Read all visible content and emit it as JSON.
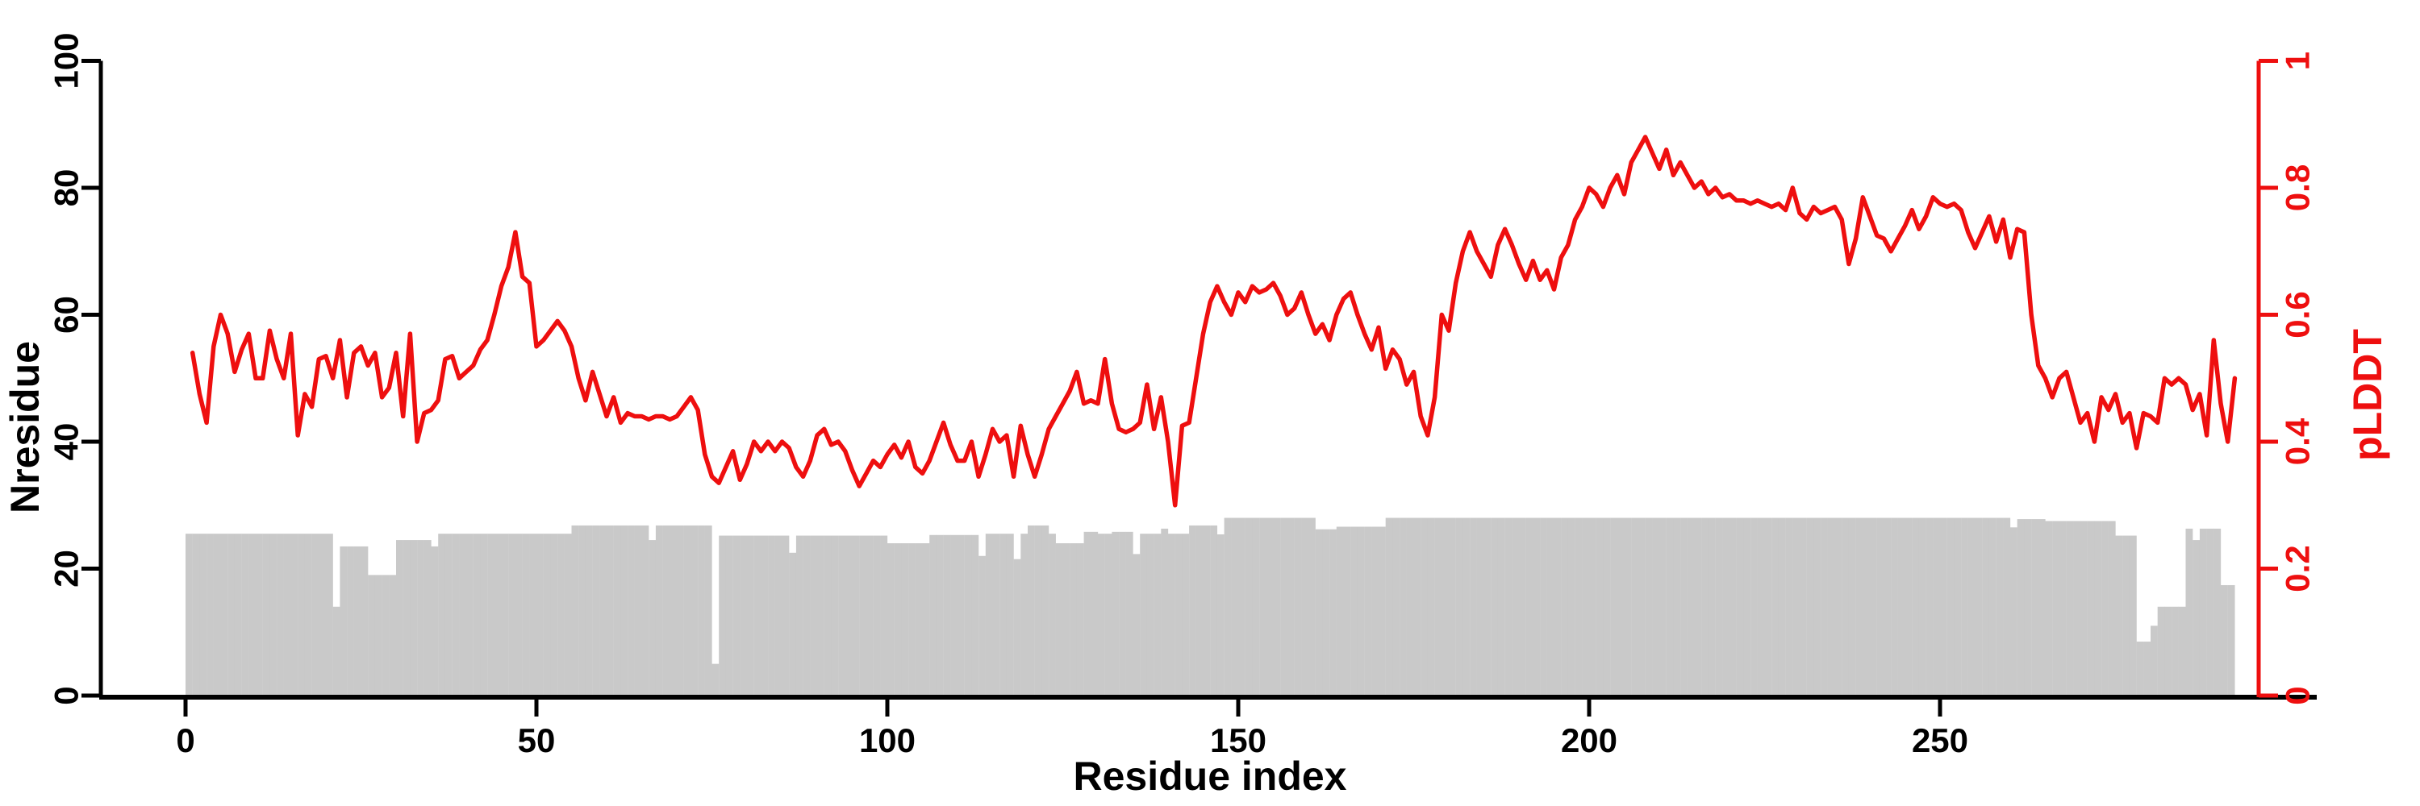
{
  "chart_data": {
    "type": "bar+line",
    "title": "",
    "xlabel": "Residue index",
    "ylabel_left": "Nresidue",
    "ylabel_right": "pLDDT",
    "x_ticks": [
      0,
      50,
      100,
      150,
      200,
      250
    ],
    "y_left_ticks": [
      0,
      20,
      40,
      60,
      80,
      100
    ],
    "y_right_ticks": [
      0,
      0.2,
      0.4,
      0.6,
      0.8,
      1
    ],
    "xlim": [
      0,
      300
    ],
    "ylim_left": [
      0,
      100
    ],
    "ylim_right": [
      0,
      1
    ],
    "grid": false,
    "legend": "none",
    "colors": {
      "bars": "#c9c9c9",
      "line": "#ee0f0f",
      "axis_left": "#000000",
      "axis_right": "#ee0f0f"
    },
    "series": [
      {
        "name": "Nresidue",
        "type": "bar",
        "x_start": 0,
        "values": [
          25.5,
          25.5,
          25.5,
          25.5,
          25.5,
          25.5,
          25.5,
          25.5,
          25.5,
          25.5,
          25.5,
          25.5,
          25.5,
          25.5,
          25.5,
          25.5,
          25.5,
          25.5,
          25.5,
          25.5,
          25.5,
          14,
          23.5,
          23.5,
          23.5,
          23.5,
          19,
          19,
          19,
          19,
          24.5,
          24.5,
          24.5,
          24.5,
          24.5,
          23.5,
          25.5,
          25.5,
          25.5,
          25.5,
          25.5,
          25.5,
          25.5,
          25.5,
          25.5,
          25.5,
          25.5,
          25.5,
          25.5,
          25.5,
          25.5,
          25.5,
          25.5,
          25.5,
          25.5,
          26.8,
          26.8,
          26.8,
          26.8,
          26.8,
          26.8,
          26.8,
          26.8,
          26.8,
          26.8,
          26.8,
          24.5,
          26.8,
          26.8,
          26.8,
          26.8,
          26.8,
          26.8,
          26.8,
          26.8,
          5,
          25.2,
          25.2,
          25.2,
          25.2,
          25.2,
          25.2,
          25.2,
          25.2,
          25.2,
          25.2,
          22.5,
          25.2,
          25.2,
          25.2,
          25.2,
          25.2,
          25.2,
          25.2,
          25.2,
          25.2,
          25.2,
          25.2,
          25.2,
          25.2,
          24,
          24,
          24,
          24,
          24,
          24,
          25.3,
          25.3,
          25.3,
          25.3,
          25.3,
          25.3,
          25.3,
          22,
          25.5,
          25.5,
          25.5,
          25.5,
          21.5,
          25.5,
          26.8,
          26.8,
          26.8,
          25.5,
          24,
          24,
          24,
          24,
          25.8,
          25.8,
          25.5,
          25.5,
          25.8,
          25.8,
          25.8,
          22.3,
          25.5,
          25.5,
          25.5,
          26.3,
          25.5,
          25.5,
          25.5,
          26.8,
          26.8,
          26.8,
          26.8,
          25.4,
          28,
          28,
          28,
          28,
          28,
          28,
          28,
          28,
          28,
          28,
          28,
          28,
          28,
          26.2,
          26.2,
          26.2,
          26.6,
          26.6,
          26.6,
          26.6,
          26.6,
          26.6,
          26.6,
          28,
          28,
          28,
          28,
          28,
          28,
          28,
          28,
          28,
          28,
          28,
          28,
          28,
          28,
          28,
          28,
          28,
          28,
          28,
          28,
          28,
          28,
          28,
          28,
          28,
          28,
          28,
          28,
          28,
          28,
          28,
          28,
          28,
          28,
          28,
          28,
          28,
          28,
          28,
          28,
          28,
          28,
          28,
          28,
          28,
          28,
          28,
          28,
          28,
          28,
          28,
          28,
          28,
          28,
          28,
          28,
          28,
          28,
          28,
          28,
          28,
          28,
          28,
          28,
          28,
          28,
          28,
          28,
          28,
          28,
          28,
          28,
          28,
          28,
          28,
          28,
          28,
          28,
          28,
          28,
          28,
          28,
          28,
          28,
          28,
          28,
          28,
          28,
          28,
          26.5,
          27.8,
          27.8,
          27.8,
          27.8,
          27.5,
          27.5,
          27.5,
          27.5,
          27.5,
          27.5,
          27.5,
          27.5,
          27.5,
          27.5,
          25.2,
          25.2,
          25.2,
          8.5,
          8.5,
          11,
          14,
          14,
          14,
          14,
          26.3,
          24.5,
          26.3,
          26.3,
          26.3,
          17.4,
          17.4
        ]
      },
      {
        "name": "pLDDT",
        "type": "line",
        "x_start": 1,
        "values": [
          0.54,
          0.475,
          0.43,
          0.55,
          0.6,
          0.57,
          0.51,
          0.545,
          0.57,
          0.5,
          0.5,
          0.575,
          0.53,
          0.5,
          0.57,
          0.41,
          0.475,
          0.455,
          0.53,
          0.535,
          0.5,
          0.56,
          0.47,
          0.54,
          0.55,
          0.52,
          0.54,
          0.47,
          0.485,
          0.54,
          0.44,
          0.57,
          0.4,
          0.445,
          0.45,
          0.465,
          0.53,
          0.535,
          0.5,
          0.51,
          0.52,
          0.545,
          0.56,
          0.6,
          0.645,
          0.675,
          0.73,
          0.66,
          0.65,
          0.55,
          0.56,
          0.575,
          0.59,
          0.575,
          0.55,
          0.5,
          0.465,
          0.51,
          0.475,
          0.44,
          0.47,
          0.43,
          0.445,
          0.44,
          0.44,
          0.435,
          0.44,
          0.44,
          0.435,
          0.44,
          0.455,
          0.47,
          0.45,
          0.38,
          0.345,
          0.335,
          0.36,
          0.385,
          0.34,
          0.365,
          0.4,
          0.385,
          0.4,
          0.385,
          0.4,
          0.39,
          0.36,
          0.345,
          0.37,
          0.41,
          0.42,
          0.395,
          0.4,
          0.385,
          0.355,
          0.33,
          0.35,
          0.37,
          0.36,
          0.38,
          0.395,
          0.375,
          0.4,
          0.36,
          0.35,
          0.37,
          0.4,
          0.43,
          0.395,
          0.37,
          0.37,
          0.4,
          0.345,
          0.38,
          0.42,
          0.4,
          0.41,
          0.345,
          0.425,
          0.38,
          0.345,
          0.38,
          0.42,
          0.44,
          0.46,
          0.48,
          0.51,
          0.46,
          0.465,
          0.46,
          0.53,
          0.46,
          0.42,
          0.415,
          0.42,
          0.43,
          0.49,
          0.42,
          0.47,
          0.4,
          0.3,
          0.425,
          0.43,
          0.5,
          0.57,
          0.62,
          0.645,
          0.62,
          0.6,
          0.635,
          0.62,
          0.645,
          0.635,
          0.64,
          0.65,
          0.63,
          0.6,
          0.61,
          0.635,
          0.6,
          0.57,
          0.585,
          0.56,
          0.6,
          0.625,
          0.635,
          0.6,
          0.57,
          0.545,
          0.58,
          0.515,
          0.545,
          0.53,
          0.49,
          0.51,
          0.44,
          0.41,
          0.47,
          0.6,
          0.575,
          0.65,
          0.7,
          0.73,
          0.7,
          0.68,
          0.66,
          0.71,
          0.735,
          0.71,
          0.68,
          0.655,
          0.685,
          0.655,
          0.67,
          0.64,
          0.69,
          0.71,
          0.75,
          0.77,
          0.8,
          0.79,
          0.77,
          0.8,
          0.82,
          0.79,
          0.84,
          0.86,
          0.88,
          0.855,
          0.83,
          0.86,
          0.82,
          0.84,
          0.82,
          0.8,
          0.81,
          0.79,
          0.8,
          0.785,
          0.79,
          0.78,
          0.78,
          0.775,
          0.78,
          0.775,
          0.77,
          0.775,
          0.765,
          0.8,
          0.76,
          0.75,
          0.77,
          0.76,
          0.765,
          0.77,
          0.75,
          0.68,
          0.72,
          0.785,
          0.755,
          0.725,
          0.72,
          0.7,
          0.72,
          0.74,
          0.765,
          0.735,
          0.755,
          0.785,
          0.775,
          0.77,
          0.775,
          0.765,
          0.73,
          0.705,
          0.73,
          0.755,
          0.715,
          0.75,
          0.69,
          0.735,
          0.73,
          0.6,
          0.52,
          0.5,
          0.47,
          0.5,
          0.51,
          0.47,
          0.43,
          0.445,
          0.4,
          0.47,
          0.45,
          0.475,
          0.43,
          0.445,
          0.39,
          0.445,
          0.44,
          0.43,
          0.5,
          0.49,
          0.5,
          0.49,
          0.45,
          0.475,
          0.41,
          0.56,
          0.46,
          0.4,
          0.5
        ]
      }
    ]
  }
}
